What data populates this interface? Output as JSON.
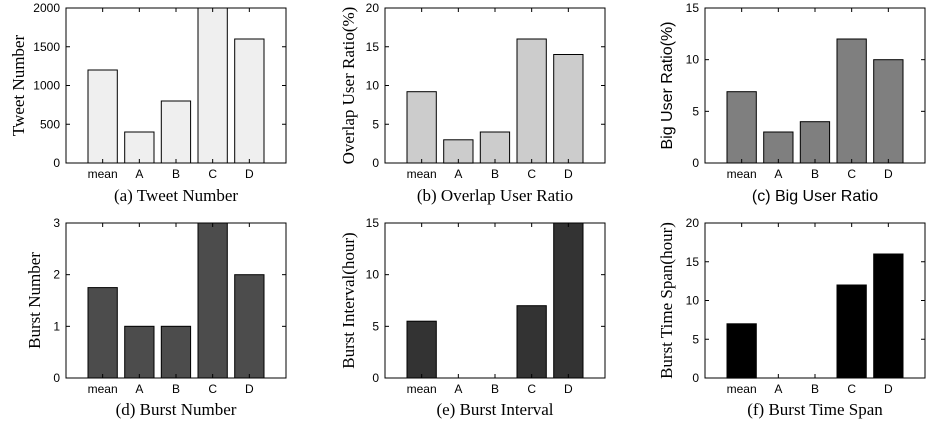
{
  "chart_data": [
    {
      "type": "bar",
      "caption": "(a) Tweet Number",
      "ylabel": "Tweet Number",
      "categories": [
        "mean",
        "A",
        "B",
        "C",
        "D"
      ],
      "values": [
        1200,
        400,
        800,
        2000,
        1600
      ],
      "ylim": [
        0,
        2000
      ],
      "yticks": [
        "0",
        "500",
        "1000",
        "1500",
        "2000"
      ],
      "bar_color": "#efefef",
      "grid": false
    },
    {
      "type": "bar",
      "caption": "(b) Overlap User Ratio",
      "ylabel": "Overlap User Ratio(%)",
      "categories": [
        "mean",
        "A",
        "B",
        "C",
        "D"
      ],
      "values": [
        9.2,
        3,
        4,
        16,
        14
      ],
      "ylim": [
        0,
        20
      ],
      "yticks": [
        "0",
        "5",
        "10",
        "15",
        "20"
      ],
      "bar_color": "#cccccc",
      "grid": false
    },
    {
      "type": "bar",
      "caption": "(c) Big User Ratio",
      "ylabel": "Big User Ratio(%)",
      "categories": [
        "mean",
        "A",
        "B",
        "C",
        "D"
      ],
      "values": [
        6.9,
        3,
        4,
        12,
        10
      ],
      "ylim": [
        0,
        15
      ],
      "yticks": [
        "0",
        "5",
        "10",
        "15"
      ],
      "bar_color": "#7f7f7f",
      "grid": false
    },
    {
      "type": "bar",
      "caption": "(d) Burst Number",
      "ylabel": "Burst Number",
      "categories": [
        "mean",
        "A",
        "B",
        "C",
        "D"
      ],
      "values": [
        1.75,
        1,
        1,
        3,
        2
      ],
      "ylim": [
        0,
        3
      ],
      "yticks": [
        "0",
        "1",
        "2",
        "3"
      ],
      "bar_color": "#4c4c4c",
      "grid": false
    },
    {
      "type": "bar",
      "caption": "(e) Burst Interval",
      "ylabel": "Burst Interval(hour)",
      "categories": [
        "mean",
        "A",
        "B",
        "C",
        "D"
      ],
      "values": [
        5.5,
        0,
        0,
        7,
        15
      ],
      "ylim": [
        0,
        15
      ],
      "yticks": [
        "0",
        "5",
        "10",
        "15"
      ],
      "bar_color": "#333333",
      "grid": false
    },
    {
      "type": "bar",
      "caption": "(f) Burst Time Span",
      "ylabel": "Burst Time Span(hour)",
      "categories": [
        "mean",
        "A",
        "B",
        "C",
        "D"
      ],
      "values": [
        7,
        0,
        0,
        12,
        16
      ],
      "ylim": [
        0,
        20
      ],
      "yticks": [
        "0",
        "5",
        "10",
        "15",
        "20"
      ],
      "bar_color": "#000000",
      "grid": false
    }
  ]
}
